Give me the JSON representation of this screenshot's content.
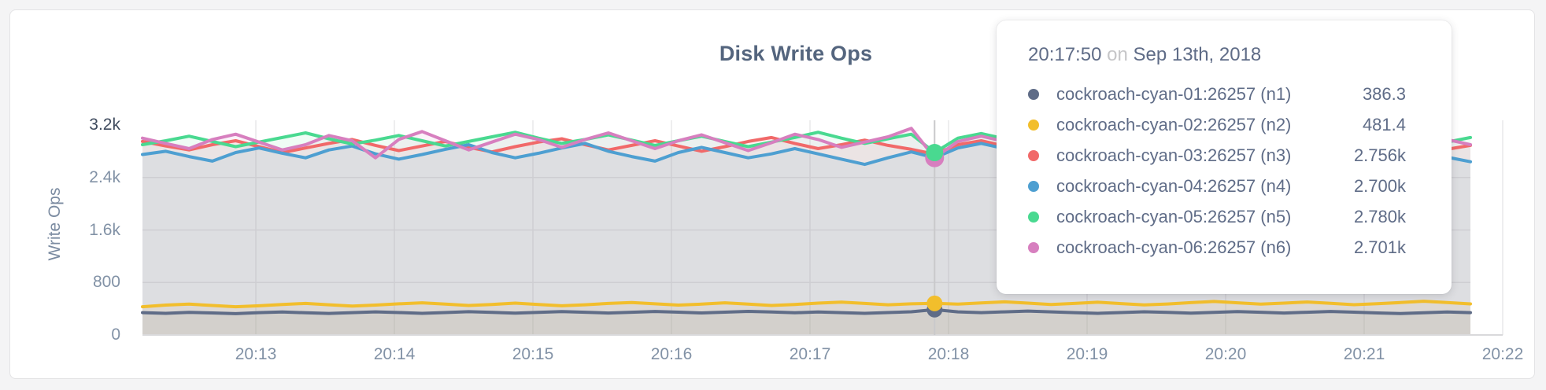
{
  "chart": {
    "title": "Disk Write Ops",
    "y_axis_label": "Write Ops",
    "y_ticks": [
      {
        "label": "3.2k",
        "value": 3200,
        "strong": true
      },
      {
        "label": "2.4k",
        "value": 2400,
        "strong": false
      },
      {
        "label": "1.6k",
        "value": 1600,
        "strong": false
      },
      {
        "label": "800",
        "value": 800,
        "strong": false
      },
      {
        "label": "0",
        "value": 0,
        "strong": false
      }
    ],
    "x_ticks": [
      "20:13",
      "20:14",
      "20:15",
      "20:16",
      "20:17",
      "20:18",
      "20:19",
      "20:20",
      "20:21",
      "20:22"
    ]
  },
  "tooltip": {
    "time": "20:17:50",
    "conjunction": "on",
    "date": "Sep 13th, 2018",
    "rows": [
      {
        "label": "cockroach-cyan-01:26257 (n1)",
        "value": "386.3",
        "color": "#5F6C87"
      },
      {
        "label": "cockroach-cyan-02:26257 (n2)",
        "value": "481.4",
        "color": "#F2BE2C"
      },
      {
        "label": "cockroach-cyan-03:26257 (n3)",
        "value": "2.756k",
        "color": "#F16969"
      },
      {
        "label": "cockroach-cyan-04:26257 (n4)",
        "value": "2.700k",
        "color": "#4E9FD1"
      },
      {
        "label": "cockroach-cyan-05:26257 (n5)",
        "value": "2.780k",
        "color": "#49D990"
      },
      {
        "label": "cockroach-cyan-06:26257 (n6)",
        "value": "2.701k",
        "color": "#D77FBF"
      }
    ]
  },
  "chart_data": {
    "type": "area",
    "title": "Disk Write Ops",
    "xlabel": "",
    "ylabel": "Write Ops",
    "ylim": [
      0,
      3200
    ],
    "grid": true,
    "legend_position": "tooltip",
    "x_ticks": [
      "20:13",
      "20:14",
      "20:15",
      "20:16",
      "20:17",
      "20:18",
      "20:19",
      "20:20",
      "20:21",
      "20:22"
    ],
    "hover_index": 34,
    "hover_time": "20:17:50",
    "hover_values": {
      "n1": 386.3,
      "n2": 481.4,
      "n3": 2756,
      "n4": 2700,
      "n5": 2780,
      "n6": 2701
    },
    "series": [
      {
        "name": "cockroach-cyan-01:26257 (n1)",
        "color": "#5F6C87",
        "values": [
          340,
          330,
          345,
          335,
          325,
          340,
          350,
          338,
          328,
          340,
          352,
          342,
          330,
          342,
          355,
          344,
          332,
          344,
          356,
          346,
          334,
          346,
          358,
          348,
          336,
          348,
          360,
          350,
          338,
          350,
          340,
          330,
          342,
          354,
          386.3,
          352,
          340,
          352,
          364,
          352,
          340,
          330,
          342,
          354,
          344,
          332,
          344,
          356,
          346,
          334,
          346,
          358,
          348,
          336,
          326,
          338,
          350,
          340
        ]
      },
      {
        "name": "cockroach-cyan-02:26257 (n2)",
        "color": "#F2BE2C",
        "values": [
          430,
          455,
          470,
          450,
          430,
          445,
          465,
          480,
          460,
          440,
          455,
          475,
          490,
          470,
          450,
          465,
          485,
          465,
          445,
          460,
          480,
          495,
          475,
          455,
          470,
          490,
          470,
          450,
          465,
          485,
          500,
          480,
          460,
          475,
          481.4,
          470,
          488,
          505,
          485,
          465,
          480,
          498,
          478,
          458,
          472,
          492,
          510,
          490,
          470,
          485,
          502,
          482,
          462,
          476,
          494,
          514,
          494,
          474
        ]
      },
      {
        "name": "cockroach-cyan-03:26257 (n3)",
        "color": "#F16969",
        "values": [
          2950,
          2880,
          2820,
          2900,
          2960,
          2870,
          2780,
          2850,
          2920,
          2980,
          2890,
          2810,
          2880,
          2950,
          2860,
          2790,
          2870,
          2940,
          2990,
          2900,
          2820,
          2890,
          2960,
          2880,
          2800,
          2870,
          2950,
          3010,
          2920,
          2840,
          2900,
          2970,
          2890,
          2830,
          2756,
          2900,
          2960,
          2880,
          2810,
          2890,
          2950,
          3020,
          2930,
          2850,
          2910,
          2980,
          2900,
          2820,
          2880,
          2960,
          3030,
          2940,
          2860,
          2920,
          2990,
          2910,
          2830,
          2890
        ]
      },
      {
        "name": "cockroach-cyan-04:26257 (n4)",
        "color": "#4E9FD1",
        "values": [
          2750,
          2800,
          2720,
          2650,
          2780,
          2850,
          2770,
          2700,
          2820,
          2880,
          2760,
          2680,
          2750,
          2830,
          2900,
          2780,
          2700,
          2770,
          2850,
          2920,
          2800,
          2720,
          2650,
          2780,
          2860,
          2780,
          2700,
          2760,
          2840,
          2760,
          2680,
          2600,
          2700,
          2790,
          2700,
          2850,
          2920,
          2840,
          2760,
          2700,
          2780,
          2860,
          2780,
          2700,
          2770,
          2850,
          2930,
          2810,
          2730,
          2800,
          2880,
          2800,
          2720,
          2790,
          2870,
          2790,
          2710,
          2640
        ]
      },
      {
        "name": "cockroach-cyan-05:26257 (n5)",
        "color": "#49D990",
        "values": [
          2900,
          2960,
          3030,
          2950,
          2870,
          2940,
          3010,
          3080,
          2990,
          2910,
          2970,
          3040,
          2960,
          2880,
          2950,
          3020,
          3090,
          3000,
          2920,
          2980,
          3050,
          2970,
          2890,
          2960,
          3030,
          2950,
          2870,
          2940,
          3010,
          3090,
          3000,
          2920,
          2990,
          3060,
          2780,
          3000,
          3070,
          2990,
          2910,
          2970,
          3040,
          2960,
          2880,
          2950,
          3020,
          3100,
          3010,
          2930,
          2990,
          3060,
          2980,
          2900,
          2960,
          3030,
          2950,
          2870,
          2940,
          3010
        ]
      },
      {
        "name": "cockroach-cyan-06:26257 (n6)",
        "color": "#D77FBF",
        "values": [
          3000,
          2920,
          2840,
          2980,
          3060,
          2940,
          2820,
          2900,
          3040,
          2960,
          2700,
          2980,
          3100,
          2960,
          2820,
          2940,
          3060,
          2980,
          2860,
          2980,
          3080,
          2960,
          2840,
          2960,
          3050,
          2930,
          2810,
          2930,
          3060,
          2980,
          2860,
          2940,
          3020,
          3150,
          2701,
          2950,
          3030,
          2950,
          2870,
          2950,
          3020,
          2940,
          2860,
          2940,
          3010,
          2930,
          2850,
          2930,
          3000,
          2920,
          2840,
          2920,
          2990,
          2910,
          2830,
          2910,
          2980,
          2900
        ]
      }
    ]
  }
}
